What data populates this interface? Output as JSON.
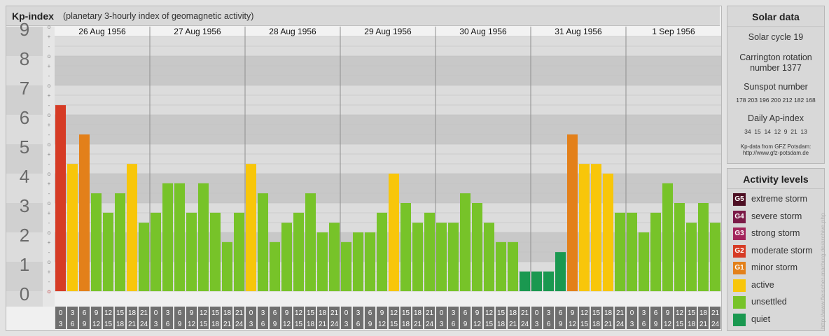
{
  "title": "Kp-index",
  "subtitle": "(planetary 3-hourly index of geomagnetic activity)",
  "colors": {
    "quiet": "#1a9850",
    "unsettled": "#77c329",
    "active": "#f8c60a",
    "minor_storm": "#e3801a",
    "moderate_storm": "#d63b25",
    "strong_storm": "#a3245b",
    "severe_storm": "#7b1a47",
    "extreme_storm": "#4d0f23",
    "band_dark": "#c8c8c8",
    "band_light": "#dcdcdc"
  },
  "chart_data": {
    "type": "bar",
    "title": "Kp-index",
    "subtitle": "(planetary 3-hourly index of geomagnetic activity)",
    "ylim": [
      0,
      9
    ],
    "y_ticks": [
      "0",
      "1",
      "2",
      "3",
      "4",
      "5",
      "6",
      "7",
      "8",
      "9"
    ],
    "sub_tick_labels": [
      "o",
      "-",
      "+"
    ],
    "days": [
      "26 Aug 1956",
      "27 Aug 1956",
      "28 Aug 1956",
      "29 Aug 1956",
      "30 Aug 1956",
      "31 Aug 1956",
      "1 Sep 1956"
    ],
    "interval_start": [
      "0",
      "3",
      "6",
      "9",
      "12",
      "15",
      "18",
      "21"
    ],
    "interval_end": [
      "3",
      "6",
      "9",
      "12",
      "15",
      "18",
      "21",
      "24"
    ],
    "values": [
      [
        6.33,
        4.33,
        5.33,
        3.33,
        2.67,
        3.33,
        4.33,
        2.33
      ],
      [
        2.67,
        3.67,
        3.67,
        2.67,
        3.67,
        2.67,
        1.67,
        2.67
      ],
      [
        4.33,
        3.33,
        1.67,
        2.33,
        2.67,
        3.33,
        2.0,
        2.33
      ],
      [
        1.67,
        2.0,
        2.0,
        2.67,
        4.0,
        3.0,
        2.33,
        2.67
      ],
      [
        2.33,
        2.33,
        3.33,
        3.0,
        2.33,
        1.67,
        1.67,
        0.67
      ],
      [
        0.67,
        0.67,
        1.33,
        5.33,
        4.33,
        4.33,
        4.0,
        2.67
      ],
      [
        2.67,
        2.0,
        2.67,
        3.67,
        3.0,
        2.33,
        3.0,
        2.33
      ]
    ]
  },
  "solar": {
    "heading": "Solar data",
    "cycle": "Solar cycle 19",
    "carrington_line1": "Carrington rotation",
    "carrington_line2": "number 1377",
    "sunspot_heading": "Sunspot number",
    "sunspot_values": "178 203 196 200 212 182 168",
    "ap_heading": "Daily Ap-index",
    "ap_values": "34  15  14  12  9  21  13",
    "source_line1": "Kp-data from GFZ Potsdam:",
    "source_line2": "http://www.gfz-potsdam.de"
  },
  "levels": {
    "heading": "Activity levels",
    "items": [
      {
        "code": "G5",
        "label": "extreme storm",
        "color": "#4d0f23"
      },
      {
        "code": "G4",
        "label": "severe storm",
        "color": "#7b1a47"
      },
      {
        "code": "G3",
        "label": "strong storm",
        "color": "#a3245b"
      },
      {
        "code": "G2",
        "label": "moderate storm",
        "color": "#d63b25"
      },
      {
        "code": "G1",
        "label": "minor storm",
        "color": "#e3801a"
      },
      {
        "code": "",
        "label": "active",
        "color": "#f8c60a"
      },
      {
        "code": "",
        "label": "unsettled",
        "color": "#77c329"
      },
      {
        "code": "",
        "label": "quiet",
        "color": "#1a9850"
      }
    ]
  },
  "watermark": "http://www.fleischer-marburg.de/archive.php"
}
